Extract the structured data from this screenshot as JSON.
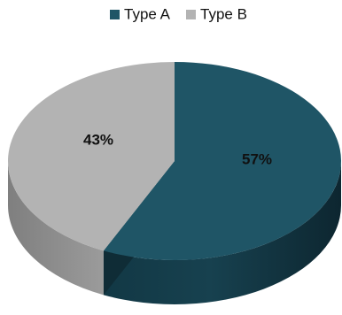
{
  "chart_data": {
    "type": "pie",
    "title": "",
    "legend_position": "top",
    "style": "3d",
    "series": [
      {
        "name": "",
        "categories": [
          "Type A",
          "Type B"
        ],
        "values": [
          57,
          43
        ],
        "labels": [
          "57%",
          "43%"
        ],
        "colors": [
          "#1f5566",
          "#b3b3b3"
        ]
      }
    ]
  }
}
